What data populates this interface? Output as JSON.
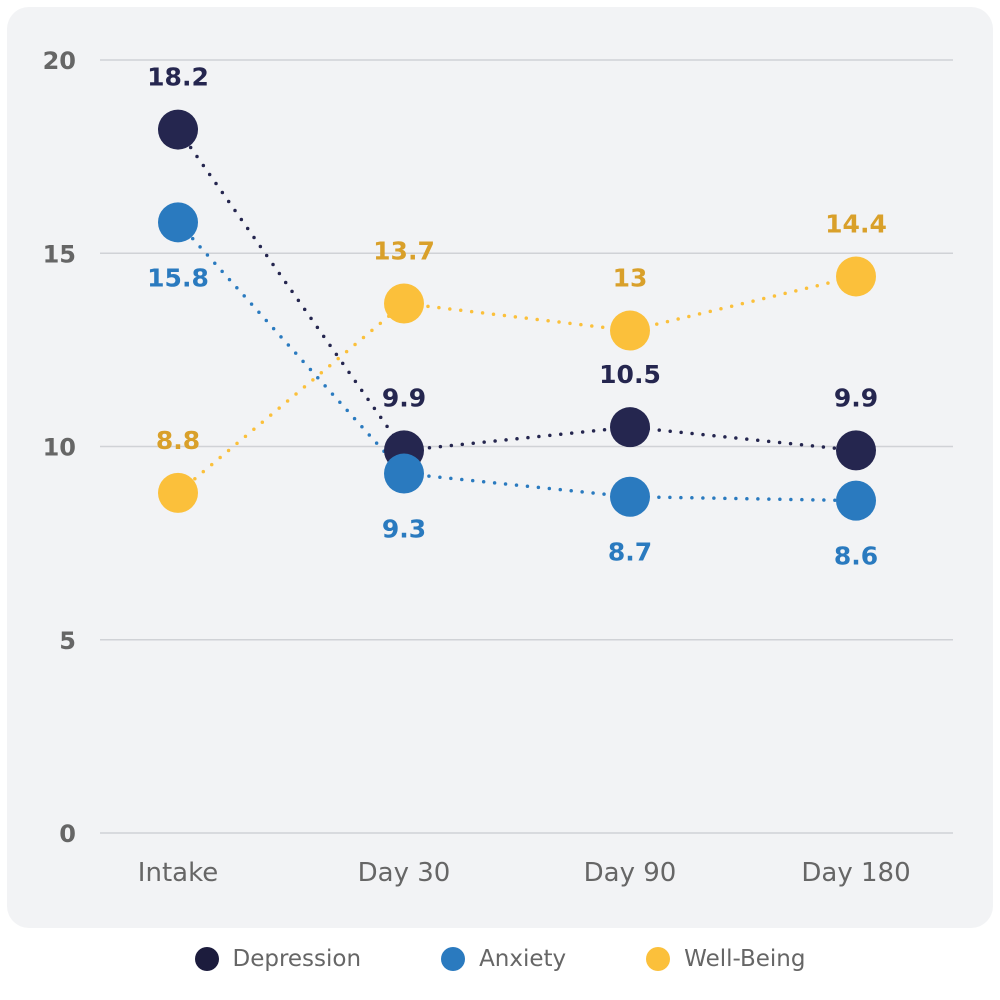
{
  "chart_data": {
    "type": "line",
    "title": "",
    "xlabel": "",
    "ylabel": "",
    "categories": [
      "Intake",
      "Day 30",
      "Day 90",
      "Day 180"
    ],
    "ylim": [
      0,
      20
    ],
    "yticks": [
      0,
      5,
      10,
      15,
      20
    ],
    "grid": true,
    "legend_position": "bottom",
    "series": [
      {
        "name": "Depression",
        "values": [
          18.2,
          9.9,
          10.5,
          9.9
        ],
        "color": "#25264f",
        "label_color": "#25264f",
        "label_side": "above"
      },
      {
        "name": "Anxiety",
        "values": [
          15.8,
          9.3,
          8.7,
          8.6
        ],
        "color": "#2a7abf",
        "label_color": "#2a7abf",
        "label_side": "below"
      },
      {
        "name": "Well-Being",
        "values": [
          8.8,
          13.7,
          13,
          14.4
        ],
        "color": "#fbc03b",
        "label_color": "#d9a02a",
        "label_side": "above"
      }
    ]
  }
}
